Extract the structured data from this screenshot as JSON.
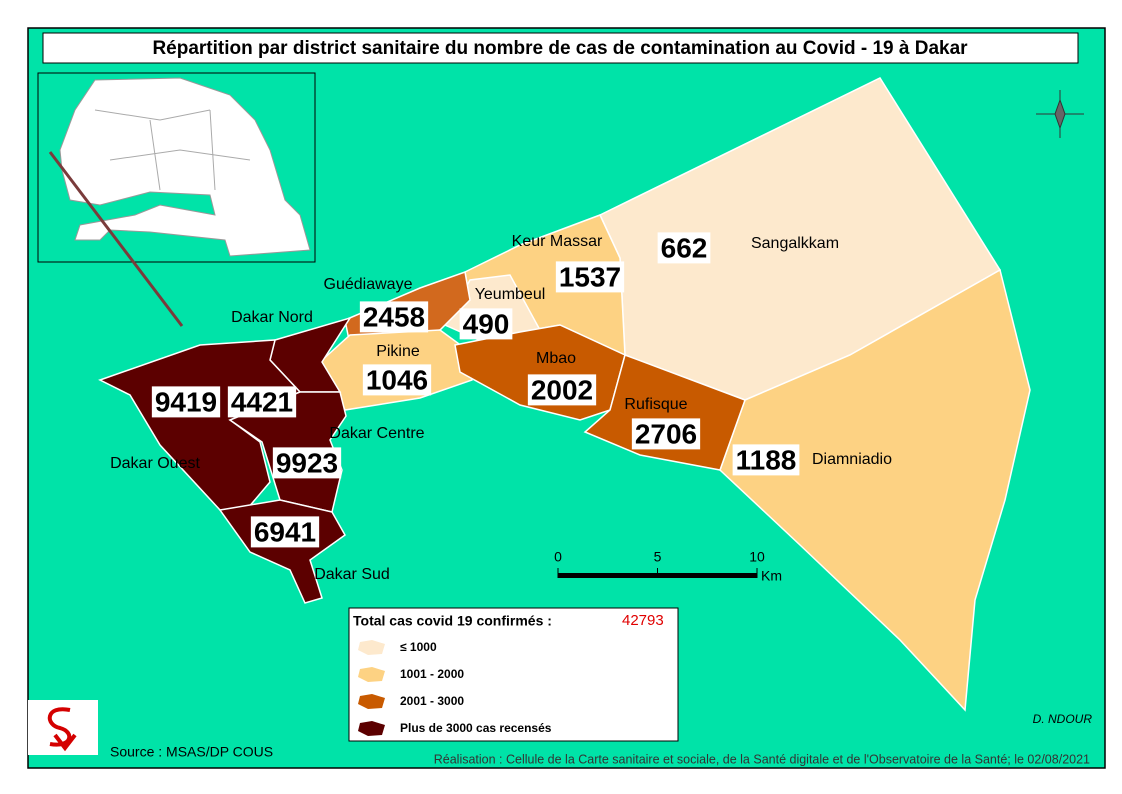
{
  "title": "Répartition par district sanitaire du nombre de cas de contamination au Covid - 19 à Dakar",
  "districts": [
    {
      "name": "Sangalkkam",
      "cases": 662,
      "color": "#fde9cd"
    },
    {
      "name": "Diamniadio",
      "cases": 1188,
      "color": "#fdd283"
    },
    {
      "name": "Keur Massar",
      "cases": 1537,
      "color": "#fdd283"
    },
    {
      "name": "Yeumbeul",
      "cases": 490,
      "color": "#fde9cd"
    },
    {
      "name": "Guédiawaye",
      "cases": 2458,
      "color": "#d2691e"
    },
    {
      "name": "Pikine",
      "cases": 1046,
      "color": "#fdd283"
    },
    {
      "name": "Mbao",
      "cases": 2002,
      "color": "#c85a00"
    },
    {
      "name": "Rufisque",
      "cases": 2706,
      "color": "#c85a00"
    },
    {
      "name": "Dakar Nord",
      "cases": 4421,
      "color": "#5c0000"
    },
    {
      "name": "Dakar Ouest",
      "cases": 9419,
      "color": "#5c0000"
    },
    {
      "name": "Dakar Centre",
      "cases": 9923,
      "color": "#5c0000"
    },
    {
      "name": "Dakar Sud",
      "cases": 6941,
      "color": "#5c0000"
    }
  ],
  "scale": {
    "ticks": [
      0,
      5,
      10
    ],
    "unit": "Km"
  },
  "legend": {
    "total_label": "Total cas covid 19 confirmés :",
    "total": 42793,
    "classes": [
      {
        "label": "≤ 1000",
        "color": "#fde9cd"
      },
      {
        "label": "1001 - 2000",
        "color": "#fdd283"
      },
      {
        "label": "2001 - 3000",
        "color": "#c85a00"
      },
      {
        "label": "Plus de 3000 cas recensés",
        "color": "#5c0000"
      }
    ]
  },
  "author": "D. NDOUR",
  "source": "Source : MSAS/DP COUS",
  "credit": "Réalisation : Cellule de la Carte sanitaire et sociale, de la Santé digitale  et de l'Observatoire de la Santé; le 02/08/2021"
}
